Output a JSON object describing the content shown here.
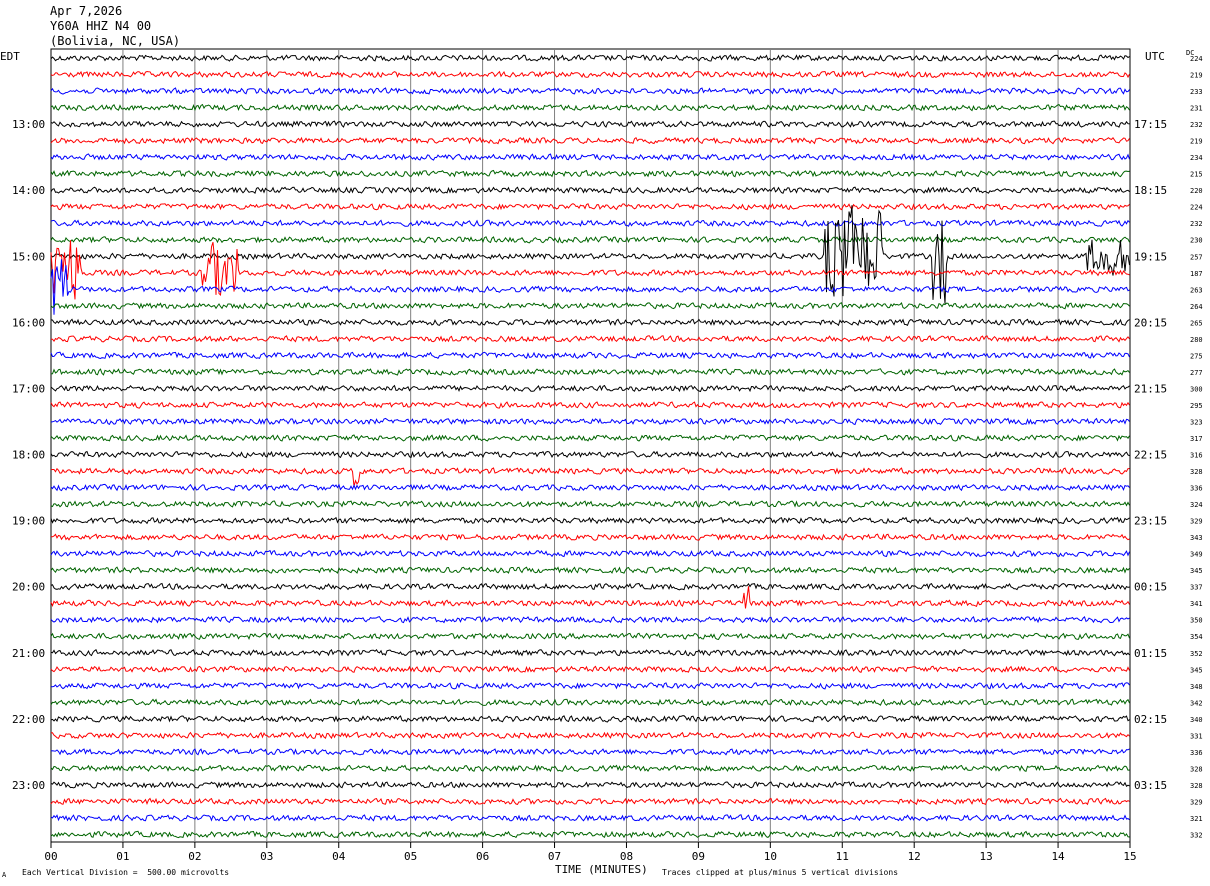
{
  "header": {
    "date": "Apr 7,2026",
    "station": "Y60A HHZ N4 00",
    "location": "(Bolivia, NC, USA)"
  },
  "left_axis_label": "EDT",
  "right_axis_label": "UTC",
  "dc_label": "DC",
  "footer": {
    "corner_mark": "A",
    "scale_text": "Each Vertical Division =  500.00 microvolts",
    "x_title": "TIME (MINUTES)",
    "clip_text": "Traces clipped at plus/minus 5 vertical divisions"
  },
  "colors": {
    "cycle": [
      "#000000",
      "#ff0000",
      "#0000ff",
      "#006400"
    ],
    "grid": "#808080"
  },
  "chart_data": {
    "type": "line",
    "title": "Apr 7,2026 Y60A HHZ N4 00 (Bolivia, NC, USA)",
    "xlabel": "TIME (MINUTES)",
    "xlim": [
      0,
      15
    ],
    "x_ticks": [
      "00",
      "01",
      "02",
      "03",
      "04",
      "05",
      "06",
      "07",
      "08",
      "09",
      "10",
      "11",
      "12",
      "13",
      "14",
      "15"
    ],
    "rows_per_hour": 4,
    "row_count": 48,
    "left_labels": [
      {
        "row": 4,
        "text": "13:00"
      },
      {
        "row": 8,
        "text": "14:00"
      },
      {
        "row": 12,
        "text": "15:00"
      },
      {
        "row": 16,
        "text": "16:00"
      },
      {
        "row": 20,
        "text": "17:00"
      },
      {
        "row": 24,
        "text": "18:00"
      },
      {
        "row": 28,
        "text": "19:00"
      },
      {
        "row": 32,
        "text": "20:00"
      },
      {
        "row": 36,
        "text": "21:00"
      },
      {
        "row": 40,
        "text": "22:00"
      },
      {
        "row": 44,
        "text": "23:00"
      }
    ],
    "right_labels": [
      {
        "row": 4,
        "text": "17:15"
      },
      {
        "row": 8,
        "text": "18:15"
      },
      {
        "row": 12,
        "text": "19:15"
      },
      {
        "row": 16,
        "text": "20:15"
      },
      {
        "row": 20,
        "text": "21:15"
      },
      {
        "row": 24,
        "text": "22:15"
      },
      {
        "row": 28,
        "text": "23:15"
      },
      {
        "row": 32,
        "text": "00:15"
      },
      {
        "row": 36,
        "text": "01:15"
      },
      {
        "row": 40,
        "text": "02:15"
      },
      {
        "row": 44,
        "text": "03:15"
      }
    ],
    "dc_values": [
      224,
      219,
      233,
      231,
      232,
      219,
      234,
      215,
      220,
      224,
      232,
      230,
      257,
      187,
      263,
      264,
      265,
      280,
      275,
      277,
      300,
      295,
      323,
      317,
      316,
      328,
      336,
      324,
      329,
      343,
      349,
      345,
      337,
      341,
      350,
      354,
      352,
      345,
      348,
      342,
      340,
      331,
      336,
      328,
      328,
      329,
      321,
      332
    ],
    "events": [
      {
        "row": 12,
        "start_min": 10.75,
        "end_min": 11.55,
        "amplitude": 5
      },
      {
        "row": 12,
        "start_min": 12.25,
        "end_min": 12.45,
        "amplitude": 5
      },
      {
        "row": 13,
        "start_min": 0.0,
        "end_min": 0.4,
        "amplitude": 4
      },
      {
        "row": 13,
        "start_min": 2.1,
        "end_min": 2.6,
        "amplitude": 3
      },
      {
        "row": 14,
        "start_min": 0.0,
        "end_min": 0.25,
        "amplitude": 3.5
      },
      {
        "row": 12,
        "start_min": 14.4,
        "end_min": 15.0,
        "amplitude": 2
      },
      {
        "row": 25,
        "start_min": 4.2,
        "end_min": 4.3,
        "amplitude": 2
      },
      {
        "row": 33,
        "start_min": 9.6,
        "end_min": 9.7,
        "amplitude": 2
      }
    ]
  }
}
